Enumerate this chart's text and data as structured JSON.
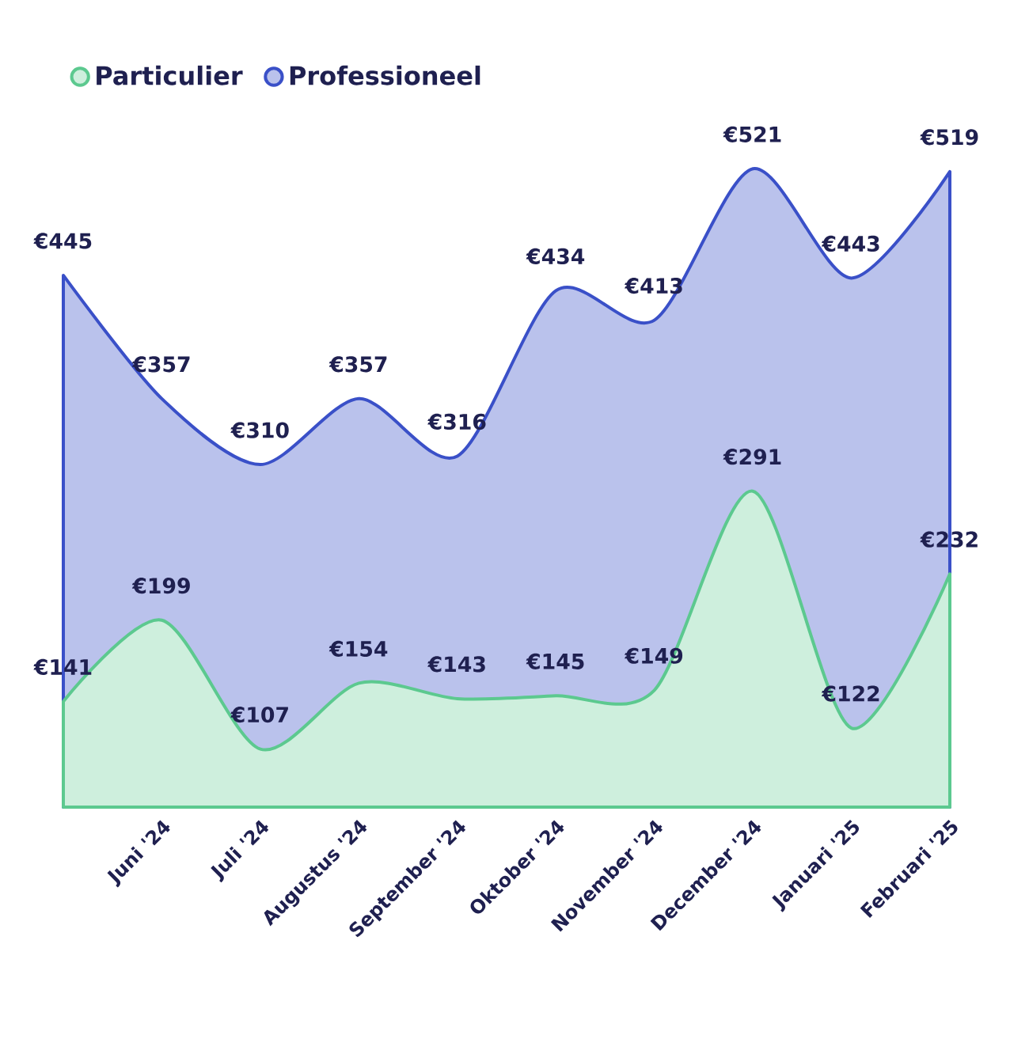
{
  "chart_data": {
    "type": "area",
    "categories": [
      null,
      "Juni '24",
      "Juli '24",
      "Augustus '24",
      "September '24",
      "Oktober '24",
      "November '24",
      "December '24",
      "Januari '25",
      "Februari '25"
    ],
    "series": [
      {
        "name": "Particulier",
        "color": "#5cc98f",
        "values": [
          141,
          199,
          107,
          154,
          143,
          145,
          149,
          291,
          122,
          232
        ],
        "value_labels": [
          "€141",
          "€199",
          "€107",
          "€154",
          "€143",
          "€145",
          "€149",
          "€291",
          "€122",
          "€232"
        ]
      },
      {
        "name": "Professioneel",
        "color": "#3a50c8",
        "values": [
          445,
          357,
          310,
          357,
          316,
          434,
          413,
          521,
          443,
          519
        ],
        "value_labels": [
          "€445",
          "€357",
          "€310",
          "€357",
          "€316",
          "€434",
          "€413",
          "€521",
          "€443",
          "€519"
        ]
      }
    ],
    "legend": "top left"
  }
}
